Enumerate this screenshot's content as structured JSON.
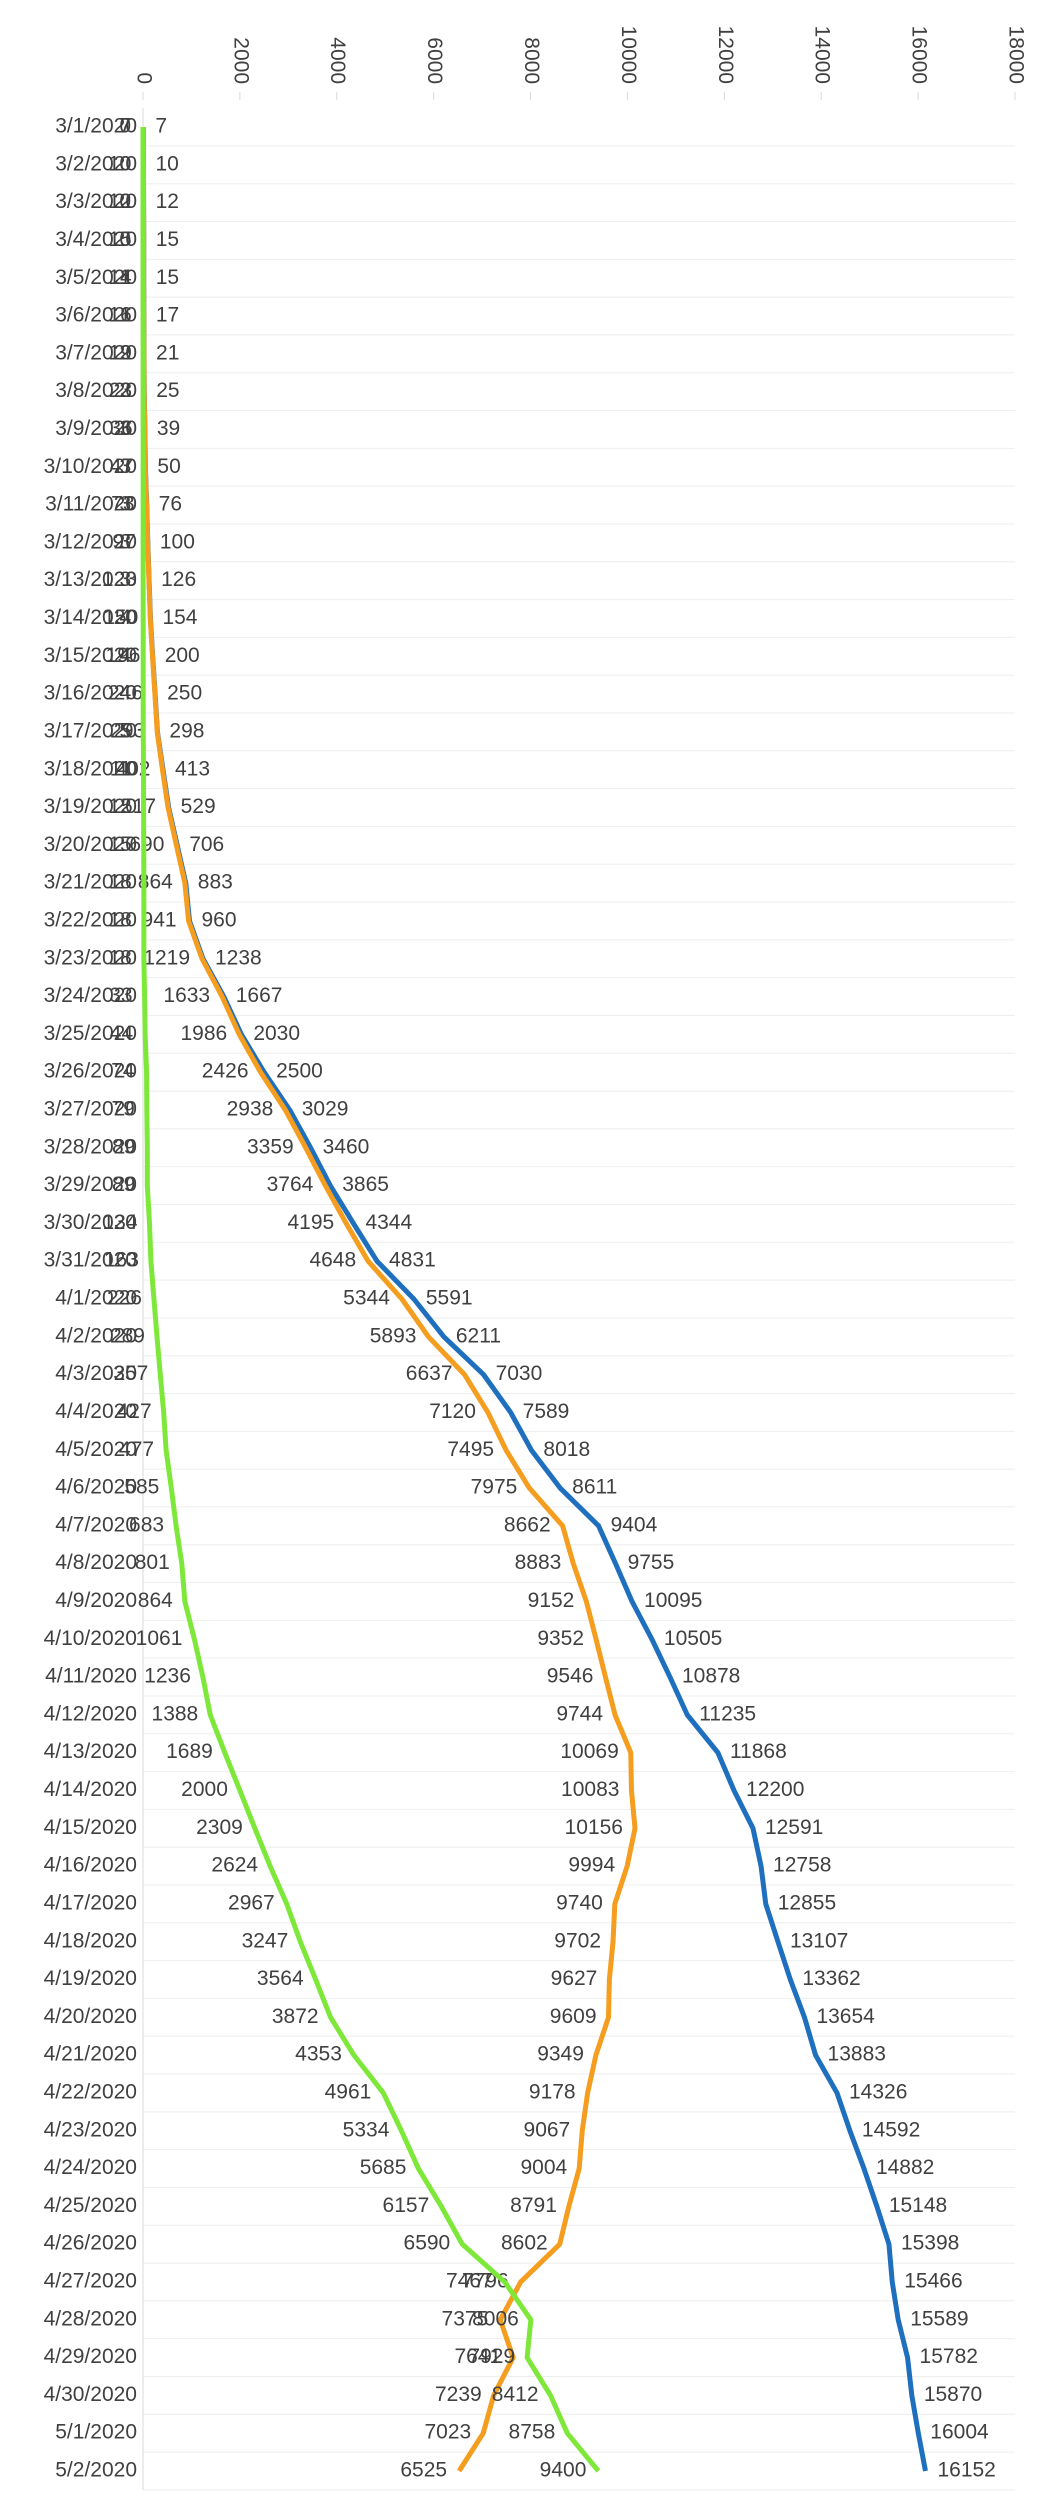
{
  "chart_data": {
    "type": "line",
    "categories": [
      "3/1/2020",
      "3/2/2020",
      "3/3/2020",
      "3/4/2020",
      "3/5/2020",
      "3/6/2020",
      "3/7/2020",
      "3/8/2020",
      "3/9/2020",
      "3/10/2020",
      "3/11/2020",
      "3/12/2020",
      "3/13/2020",
      "3/14/2020",
      "3/15/2020",
      "3/16/2020",
      "3/17/2020",
      "3/18/2020",
      "3/19/2020",
      "3/20/2020",
      "3/21/2020",
      "3/22/2020",
      "3/23/2020",
      "3/24/2020",
      "3/25/2020",
      "3/26/2020",
      "3/27/2020",
      "3/28/2020",
      "3/29/2020",
      "3/30/2020",
      "3/31/2020",
      "4/1/2020",
      "4/2/2020",
      "4/3/2020",
      "4/4/2020",
      "4/5/2020",
      "4/6/2020",
      "4/7/2020",
      "4/8/2020",
      "4/9/2020",
      "4/10/2020",
      "4/11/2020",
      "4/12/2020",
      "4/13/2020",
      "4/14/2020",
      "4/15/2020",
      "4/16/2020",
      "4/17/2020",
      "4/18/2020",
      "4/19/2020",
      "4/20/2020",
      "4/21/2020",
      "4/22/2020",
      "4/23/2020",
      "4/24/2020",
      "4/25/2020",
      "4/26/2020",
      "4/27/2020",
      "4/28/2020",
      "4/29/2020",
      "4/30/2020",
      "5/1/2020",
      "5/2/2020"
    ],
    "series": [
      {
        "color": "#1f6fbf",
        "label_side": "right",
        "values": [
          7,
          10,
          12,
          15,
          15,
          17,
          21,
          25,
          39,
          50,
          76,
          100,
          126,
          154,
          200,
          250,
          298,
          413,
          529,
          706,
          883,
          960,
          1238,
          1667,
          2030,
          2500,
          3029,
          3460,
          3865,
          4344,
          4831,
          5591,
          6211,
          7030,
          7589,
          8018,
          8611,
          9404,
          9755,
          10095,
          10505,
          10878,
          11235,
          11868,
          12200,
          12591,
          12758,
          12855,
          13107,
          13362,
          13654,
          13883,
          14326,
          14592,
          14882,
          15148,
          15398,
          15466,
          15589,
          15782,
          15870,
          16004,
          16152
        ]
      },
      {
        "color": "#f59d1f",
        "label_side": "left",
        "values": [
          7,
          10,
          12,
          15,
          14,
          16,
          19,
          23,
          36,
          47,
          73,
          97,
          123,
          150,
          196,
          246,
          293,
          402,
          517,
          690,
          864,
          941,
          1219,
          1633,
          1986,
          2426,
          2938,
          3359,
          3764,
          4195,
          4648,
          5344,
          5893,
          6637,
          7120,
          7495,
          7975,
          8662,
          8883,
          9152,
          9352,
          9546,
          9744,
          10069,
          10083,
          10156,
          9994,
          9740,
          9702,
          9627,
          9609,
          9349,
          9178,
          9067,
          9004,
          8791,
          8602,
          7796,
          7375,
          7641,
          7239,
          7023,
          6525
        ]
      },
      {
        "color": "#7ee83a",
        "label_side": "left",
        "values": [
          0,
          0,
          0,
          0,
          1,
          1,
          2,
          2,
          3,
          3,
          3,
          3,
          3,
          4,
          4,
          4,
          5,
          11,
          12,
          15,
          18,
          18,
          18,
          33,
          44,
          74,
          79,
          89,
          89,
          134,
          163,
          226,
          289,
          357,
          427,
          477,
          585,
          683,
          801,
          864,
          1061,
          1236,
          1388,
          1689,
          2000,
          2309,
          2624,
          2967,
          3247,
          3564,
          3872,
          4353,
          4961,
          5334,
          5685,
          6157,
          6590,
          7467,
          8006,
          7929,
          8412,
          8758,
          9400
        ]
      }
    ],
    "xlim": [
      0,
      18000
    ],
    "xticks": [
      0,
      2000,
      4000,
      6000,
      8000,
      10000,
      12000,
      14000,
      16000,
      18000
    ]
  }
}
